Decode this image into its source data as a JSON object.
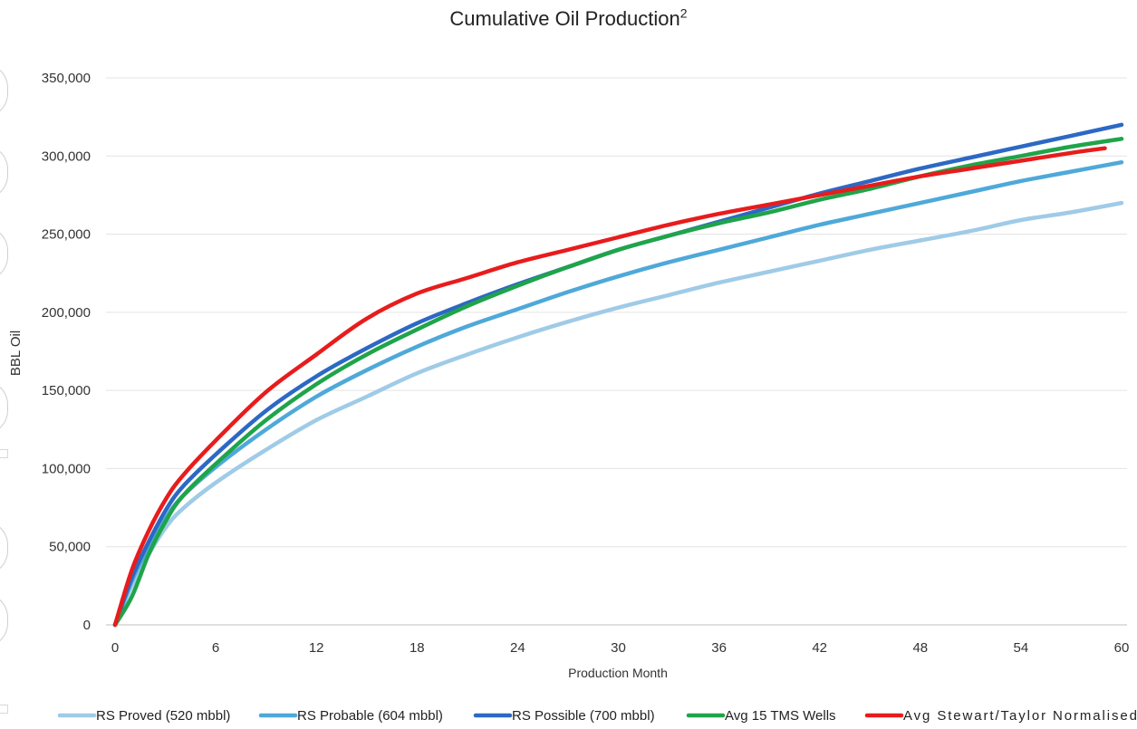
{
  "chart_data": {
    "type": "line",
    "title": "Cumulative Oil Production",
    "title_superscript": "2",
    "xlabel": "Production Month",
    "ylabel": "BBL Oil",
    "xlim": [
      0,
      60
    ],
    "ylim": [
      0,
      350000
    ],
    "xticks": [
      0,
      6,
      12,
      18,
      24,
      30,
      36,
      42,
      48,
      54,
      60
    ],
    "yticks": [
      0,
      50000,
      100000,
      150000,
      200000,
      250000,
      300000,
      350000
    ],
    "ytick_labels": [
      "0",
      "50,000",
      "100,000",
      "150,000",
      "200,000",
      "250,000",
      "300,000",
      "350,000"
    ],
    "grid": "horizontal",
    "legend_position": "bottom",
    "series": [
      {
        "name": "RS Proved (520 mbbl)",
        "color": "#9fcbe7",
        "points": [
          [
            0,
            0
          ],
          [
            1,
            25000
          ],
          [
            2,
            45000
          ],
          [
            3,
            62000
          ],
          [
            4,
            74000
          ],
          [
            6,
            91000
          ],
          [
            9,
            112000
          ],
          [
            12,
            131000
          ],
          [
            15,
            146000
          ],
          [
            18,
            161000
          ],
          [
            21,
            173000
          ],
          [
            24,
            184000
          ],
          [
            27,
            194000
          ],
          [
            30,
            203000
          ],
          [
            33,
            211000
          ],
          [
            36,
            219000
          ],
          [
            39,
            226000
          ],
          [
            42,
            233000
          ],
          [
            45,
            240000
          ],
          [
            48,
            246000
          ],
          [
            51,
            252000
          ],
          [
            54,
            259000
          ],
          [
            57,
            264000
          ],
          [
            60,
            270000
          ]
        ]
      },
      {
        "name": "RS Probable (604 mbbl)",
        "color": "#4ea9d9",
        "points": [
          [
            0,
            0
          ],
          [
            1,
            28000
          ],
          [
            2,
            50000
          ],
          [
            3,
            68000
          ],
          [
            4,
            82000
          ],
          [
            6,
            101000
          ],
          [
            9,
            125000
          ],
          [
            12,
            146000
          ],
          [
            15,
            163000
          ],
          [
            18,
            178000
          ],
          [
            21,
            191000
          ],
          [
            24,
            202000
          ],
          [
            27,
            213000
          ],
          [
            30,
            223000
          ],
          [
            33,
            232000
          ],
          [
            36,
            240000
          ],
          [
            39,
            248000
          ],
          [
            42,
            256000
          ],
          [
            45,
            263000
          ],
          [
            48,
            270000
          ],
          [
            51,
            277000
          ],
          [
            54,
            284000
          ],
          [
            57,
            290000
          ],
          [
            60,
            296000
          ]
        ]
      },
      {
        "name": "RS Possible (700 mbbl)",
        "color": "#2d68c4",
        "points": [
          [
            0,
            0
          ],
          [
            1,
            30000
          ],
          [
            2,
            53000
          ],
          [
            3,
            73000
          ],
          [
            4,
            88000
          ],
          [
            6,
            109000
          ],
          [
            9,
            137000
          ],
          [
            12,
            159000
          ],
          [
            15,
            177000
          ],
          [
            18,
            193000
          ],
          [
            21,
            206000
          ],
          [
            24,
            218000
          ],
          [
            27,
            229000
          ],
          [
            30,
            240000
          ],
          [
            33,
            249000
          ],
          [
            36,
            258000
          ],
          [
            39,
            267000
          ],
          [
            42,
            276000
          ],
          [
            45,
            284000
          ],
          [
            48,
            292000
          ],
          [
            51,
            299000
          ],
          [
            54,
            306000
          ],
          [
            57,
            313000
          ],
          [
            60,
            320000
          ]
        ]
      },
      {
        "name": "Avg 15 TMS Wells",
        "color": "#1fa44a",
        "points": [
          [
            0,
            0
          ],
          [
            1,
            18000
          ],
          [
            2,
            45000
          ],
          [
            3,
            66000
          ],
          [
            4,
            82000
          ],
          [
            6,
            103000
          ],
          [
            9,
            131000
          ],
          [
            12,
            154000
          ],
          [
            15,
            173000
          ],
          [
            18,
            189000
          ],
          [
            21,
            204000
          ],
          [
            24,
            217000
          ],
          [
            27,
            229000
          ],
          [
            30,
            240000
          ],
          [
            33,
            249000
          ],
          [
            36,
            257000
          ],
          [
            39,
            264000
          ],
          [
            42,
            272000
          ],
          [
            45,
            279000
          ],
          [
            48,
            287000
          ],
          [
            51,
            294000
          ],
          [
            54,
            300000
          ],
          [
            57,
            306000
          ],
          [
            60,
            311000
          ]
        ]
      },
      {
        "name": "Avg Stewart/Taylor Normalised",
        "color": "#e81c1c",
        "points": [
          [
            0,
            0
          ],
          [
            1,
            35000
          ],
          [
            2,
            60000
          ],
          [
            3,
            80000
          ],
          [
            4,
            95000
          ],
          [
            6,
            118000
          ],
          [
            9,
            149000
          ],
          [
            12,
            173000
          ],
          [
            15,
            196000
          ],
          [
            18,
            212000
          ],
          [
            21,
            222000
          ],
          [
            24,
            232000
          ],
          [
            27,
            240000
          ],
          [
            30,
            248000
          ],
          [
            33,
            256000
          ],
          [
            36,
            263000
          ],
          [
            39,
            269000
          ],
          [
            42,
            275000
          ],
          [
            45,
            281000
          ],
          [
            48,
            287000
          ],
          [
            51,
            292000
          ],
          [
            54,
            297000
          ],
          [
            57,
            302000
          ],
          [
            59,
            305000
          ]
        ]
      }
    ]
  }
}
